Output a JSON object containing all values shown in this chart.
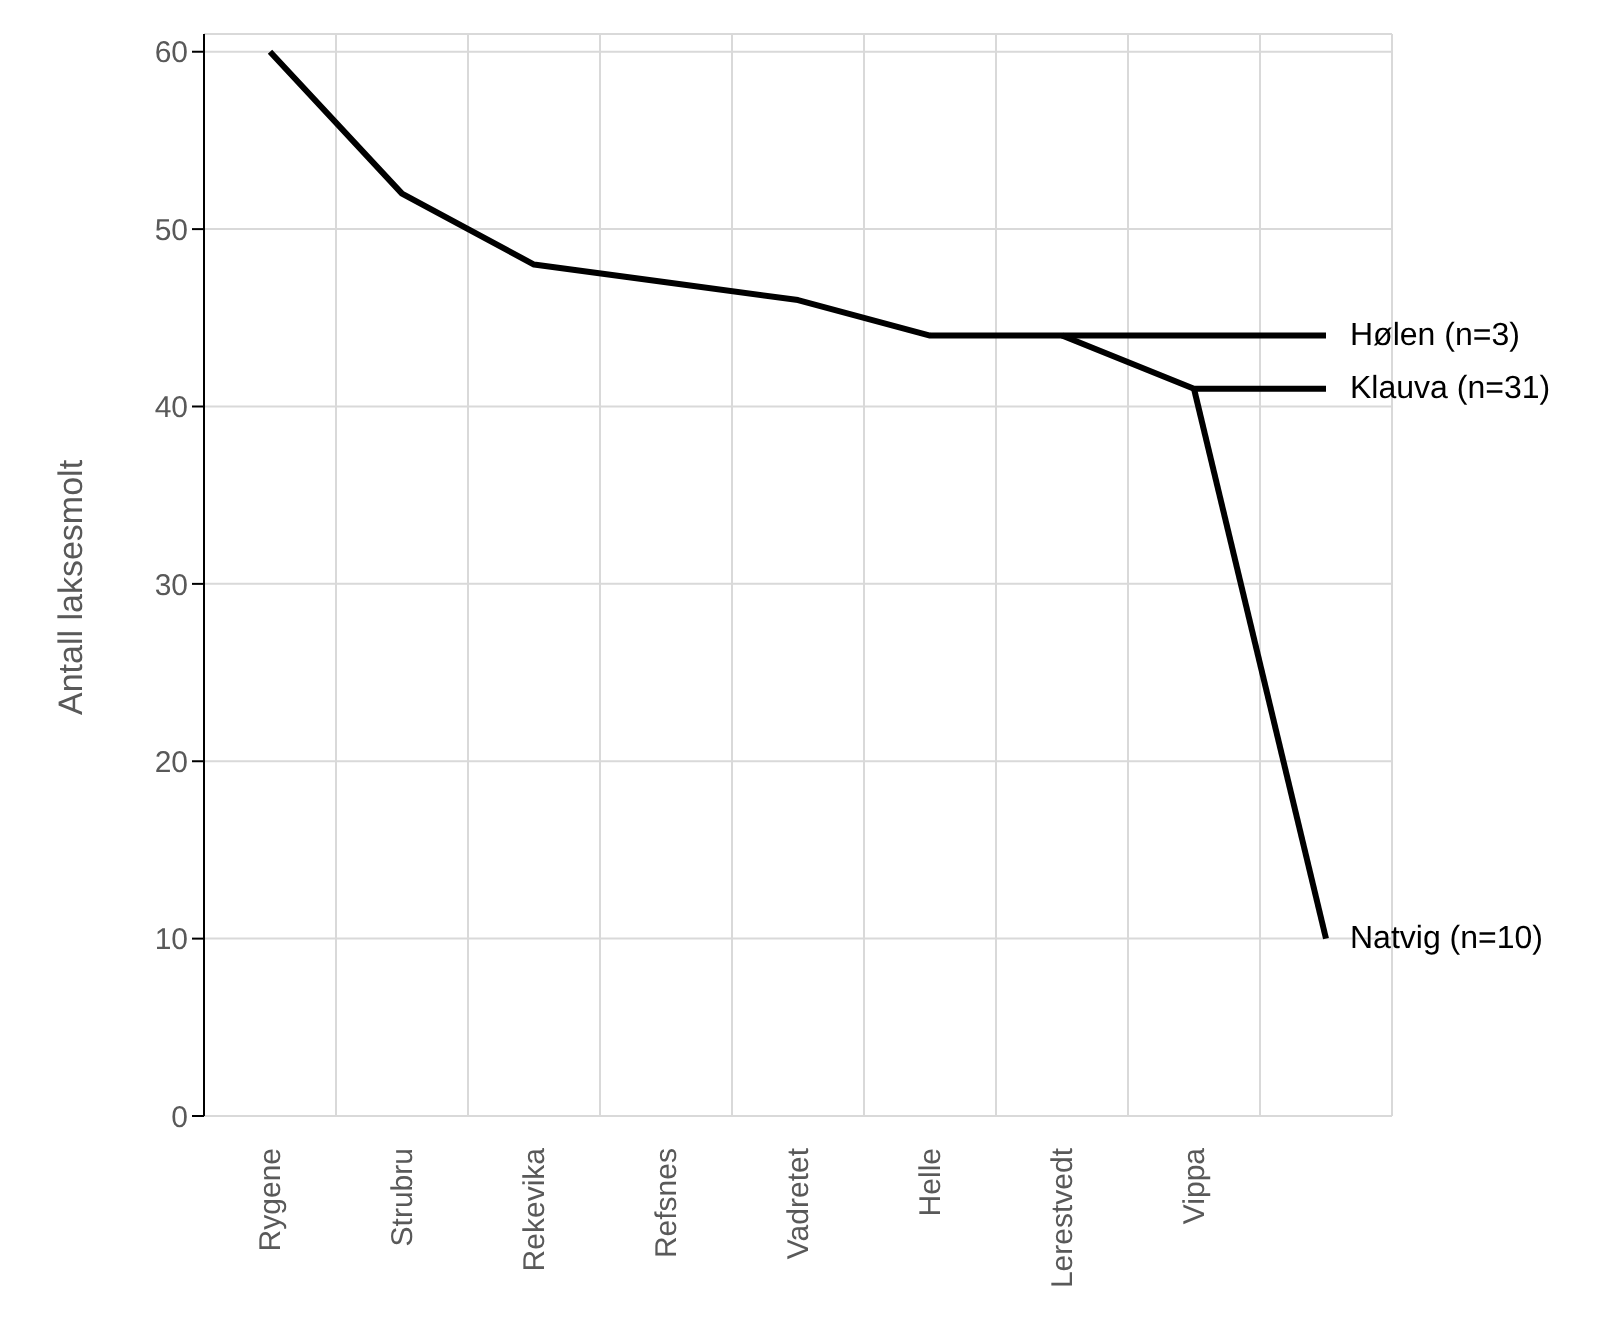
{
  "chart_data": {
    "type": "line",
    "ylabel": "Antall laksesmolt",
    "categories": [
      "Rygene",
      "Strubru",
      "Rekevika",
      "Refsnes",
      "Vadretet",
      "Helle",
      "Lerestvedt",
      "Vippa",
      null
    ],
    "series": [
      {
        "name": "Hølen (n=3)",
        "color": "#000000",
        "values": [
          60,
          52,
          48,
          47,
          46,
          44,
          44,
          44,
          44
        ]
      },
      {
        "name": "Klauva (n=31)",
        "color": "#000000",
        "values": [
          null,
          null,
          null,
          null,
          null,
          null,
          44,
          41,
          41
        ]
      },
      {
        "name": "Natvig (n=10)",
        "color": "#000000",
        "values": [
          null,
          null,
          null,
          null,
          null,
          null,
          null,
          41,
          10
        ]
      }
    ],
    "ylim": [
      0,
      61
    ],
    "yticks": [
      0,
      10,
      20,
      30,
      40,
      50,
      60
    ],
    "grid": true,
    "marker": "none",
    "line_style": "solid",
    "legend": false
  }
}
